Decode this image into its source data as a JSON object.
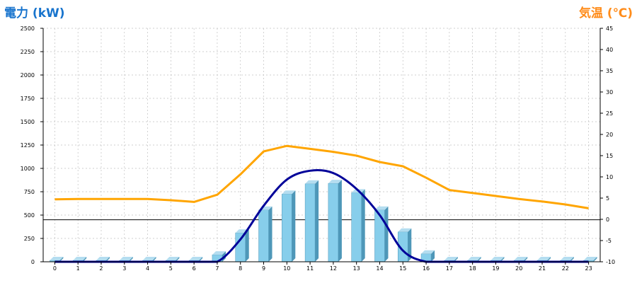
{
  "chart_data": {
    "type": "bar",
    "title_left": "電力 (kW)",
    "title_right": "気温 (℃)",
    "left_axis": {
      "min": 0,
      "max": 2500,
      "step": 250
    },
    "right_axis": {
      "min": -10,
      "max": 45,
      "step": 5
    },
    "grid": true,
    "categories": [
      "0",
      "1",
      "2",
      "3",
      "4",
      "5",
      "6",
      "7",
      "8",
      "9",
      "10",
      "11",
      "12",
      "13",
      "14",
      "15",
      "16",
      "17",
      "18",
      "19",
      "20",
      "21",
      "22",
      "23"
    ],
    "series": [
      {
        "axis": "left",
        "render": "bar",
        "color": "#87CEEB",
        "values": [
          15,
          15,
          15,
          15,
          15,
          15,
          15,
          75,
          310,
          555,
          725,
          835,
          840,
          740,
          555,
          320,
          85,
          15,
          15,
          15,
          15,
          15,
          15,
          15
        ]
      },
      {
        "axis": "left",
        "render": "smooth_line",
        "color": "#000099",
        "values": [
          0,
          0,
          0,
          0,
          0,
          0,
          0,
          0,
          240,
          600,
          880,
          975,
          950,
          780,
          500,
          120,
          0,
          0,
          0,
          0,
          0,
          0,
          0,
          0
        ]
      },
      {
        "axis": "right",
        "render": "line",
        "color": "#FFA500",
        "values": [
          4.7,
          4.8,
          4.8,
          4.8,
          4.8,
          4.5,
          4.1,
          5.8,
          10.6,
          16.0,
          17.3,
          16.6,
          15.9,
          15.0,
          13.5,
          12.5,
          9.8,
          6.9,
          6.2,
          5.5,
          4.8,
          4.2,
          3.5,
          2.6
        ]
      }
    ],
    "reference_line": {
      "axis": "left",
      "value": 450,
      "color": "#000000"
    }
  },
  "colors": {
    "title_left": "#1874CD",
    "title_right": "#FF8C1A",
    "bar_side": "#4E97B8",
    "bar_top": "#B4DDF0",
    "grid": "#C0C0C0"
  }
}
